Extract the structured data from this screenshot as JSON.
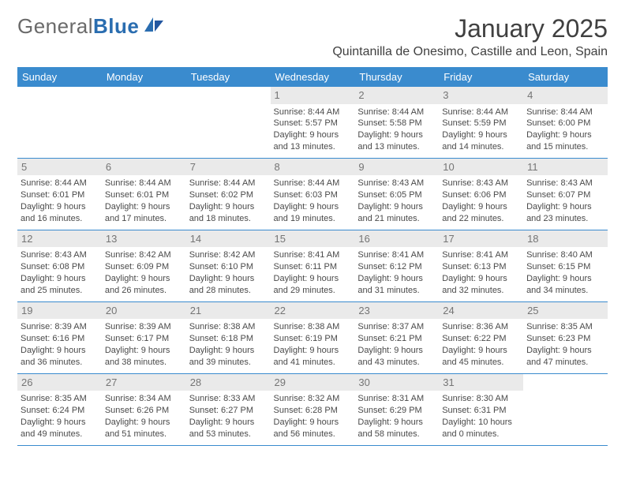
{
  "brand": {
    "part1": "General",
    "part2": "Blue"
  },
  "title": "January 2025",
  "location": "Quintanilla de Onesimo, Castille and Leon, Spain",
  "colors": {
    "header_bg": "#3a8bce",
    "header_text": "#ffffff",
    "daynum_bg": "#eaeaea",
    "daynum_text": "#757575",
    "body_text": "#4a4a4a",
    "rule": "#3a8bce"
  },
  "weekdays": [
    "Sunday",
    "Monday",
    "Tuesday",
    "Wednesday",
    "Thursday",
    "Friday",
    "Saturday"
  ],
  "weeks": [
    [
      null,
      null,
      null,
      {
        "n": "1",
        "sr": "Sunrise: 8:44 AM",
        "ss": "Sunset: 5:57 PM",
        "d1": "Daylight: 9 hours",
        "d2": "and 13 minutes."
      },
      {
        "n": "2",
        "sr": "Sunrise: 8:44 AM",
        "ss": "Sunset: 5:58 PM",
        "d1": "Daylight: 9 hours",
        "d2": "and 13 minutes."
      },
      {
        "n": "3",
        "sr": "Sunrise: 8:44 AM",
        "ss": "Sunset: 5:59 PM",
        "d1": "Daylight: 9 hours",
        "d2": "and 14 minutes."
      },
      {
        "n": "4",
        "sr": "Sunrise: 8:44 AM",
        "ss": "Sunset: 6:00 PM",
        "d1": "Daylight: 9 hours",
        "d2": "and 15 minutes."
      }
    ],
    [
      {
        "n": "5",
        "sr": "Sunrise: 8:44 AM",
        "ss": "Sunset: 6:01 PM",
        "d1": "Daylight: 9 hours",
        "d2": "and 16 minutes."
      },
      {
        "n": "6",
        "sr": "Sunrise: 8:44 AM",
        "ss": "Sunset: 6:01 PM",
        "d1": "Daylight: 9 hours",
        "d2": "and 17 minutes."
      },
      {
        "n": "7",
        "sr": "Sunrise: 8:44 AM",
        "ss": "Sunset: 6:02 PM",
        "d1": "Daylight: 9 hours",
        "d2": "and 18 minutes."
      },
      {
        "n": "8",
        "sr": "Sunrise: 8:44 AM",
        "ss": "Sunset: 6:03 PM",
        "d1": "Daylight: 9 hours",
        "d2": "and 19 minutes."
      },
      {
        "n": "9",
        "sr": "Sunrise: 8:43 AM",
        "ss": "Sunset: 6:05 PM",
        "d1": "Daylight: 9 hours",
        "d2": "and 21 minutes."
      },
      {
        "n": "10",
        "sr": "Sunrise: 8:43 AM",
        "ss": "Sunset: 6:06 PM",
        "d1": "Daylight: 9 hours",
        "d2": "and 22 minutes."
      },
      {
        "n": "11",
        "sr": "Sunrise: 8:43 AM",
        "ss": "Sunset: 6:07 PM",
        "d1": "Daylight: 9 hours",
        "d2": "and 23 minutes."
      }
    ],
    [
      {
        "n": "12",
        "sr": "Sunrise: 8:43 AM",
        "ss": "Sunset: 6:08 PM",
        "d1": "Daylight: 9 hours",
        "d2": "and 25 minutes."
      },
      {
        "n": "13",
        "sr": "Sunrise: 8:42 AM",
        "ss": "Sunset: 6:09 PM",
        "d1": "Daylight: 9 hours",
        "d2": "and 26 minutes."
      },
      {
        "n": "14",
        "sr": "Sunrise: 8:42 AM",
        "ss": "Sunset: 6:10 PM",
        "d1": "Daylight: 9 hours",
        "d2": "and 28 minutes."
      },
      {
        "n": "15",
        "sr": "Sunrise: 8:41 AM",
        "ss": "Sunset: 6:11 PM",
        "d1": "Daylight: 9 hours",
        "d2": "and 29 minutes."
      },
      {
        "n": "16",
        "sr": "Sunrise: 8:41 AM",
        "ss": "Sunset: 6:12 PM",
        "d1": "Daylight: 9 hours",
        "d2": "and 31 minutes."
      },
      {
        "n": "17",
        "sr": "Sunrise: 8:41 AM",
        "ss": "Sunset: 6:13 PM",
        "d1": "Daylight: 9 hours",
        "d2": "and 32 minutes."
      },
      {
        "n": "18",
        "sr": "Sunrise: 8:40 AM",
        "ss": "Sunset: 6:15 PM",
        "d1": "Daylight: 9 hours",
        "d2": "and 34 minutes."
      }
    ],
    [
      {
        "n": "19",
        "sr": "Sunrise: 8:39 AM",
        "ss": "Sunset: 6:16 PM",
        "d1": "Daylight: 9 hours",
        "d2": "and 36 minutes."
      },
      {
        "n": "20",
        "sr": "Sunrise: 8:39 AM",
        "ss": "Sunset: 6:17 PM",
        "d1": "Daylight: 9 hours",
        "d2": "and 38 minutes."
      },
      {
        "n": "21",
        "sr": "Sunrise: 8:38 AM",
        "ss": "Sunset: 6:18 PM",
        "d1": "Daylight: 9 hours",
        "d2": "and 39 minutes."
      },
      {
        "n": "22",
        "sr": "Sunrise: 8:38 AM",
        "ss": "Sunset: 6:19 PM",
        "d1": "Daylight: 9 hours",
        "d2": "and 41 minutes."
      },
      {
        "n": "23",
        "sr": "Sunrise: 8:37 AM",
        "ss": "Sunset: 6:21 PM",
        "d1": "Daylight: 9 hours",
        "d2": "and 43 minutes."
      },
      {
        "n": "24",
        "sr": "Sunrise: 8:36 AM",
        "ss": "Sunset: 6:22 PM",
        "d1": "Daylight: 9 hours",
        "d2": "and 45 minutes."
      },
      {
        "n": "25",
        "sr": "Sunrise: 8:35 AM",
        "ss": "Sunset: 6:23 PM",
        "d1": "Daylight: 9 hours",
        "d2": "and 47 minutes."
      }
    ],
    [
      {
        "n": "26",
        "sr": "Sunrise: 8:35 AM",
        "ss": "Sunset: 6:24 PM",
        "d1": "Daylight: 9 hours",
        "d2": "and 49 minutes."
      },
      {
        "n": "27",
        "sr": "Sunrise: 8:34 AM",
        "ss": "Sunset: 6:26 PM",
        "d1": "Daylight: 9 hours",
        "d2": "and 51 minutes."
      },
      {
        "n": "28",
        "sr": "Sunrise: 8:33 AM",
        "ss": "Sunset: 6:27 PM",
        "d1": "Daylight: 9 hours",
        "d2": "and 53 minutes."
      },
      {
        "n": "29",
        "sr": "Sunrise: 8:32 AM",
        "ss": "Sunset: 6:28 PM",
        "d1": "Daylight: 9 hours",
        "d2": "and 56 minutes."
      },
      {
        "n": "30",
        "sr": "Sunrise: 8:31 AM",
        "ss": "Sunset: 6:29 PM",
        "d1": "Daylight: 9 hours",
        "d2": "and 58 minutes."
      },
      {
        "n": "31",
        "sr": "Sunrise: 8:30 AM",
        "ss": "Sunset: 6:31 PM",
        "d1": "Daylight: 10 hours",
        "d2": "and 0 minutes."
      },
      null
    ]
  ]
}
